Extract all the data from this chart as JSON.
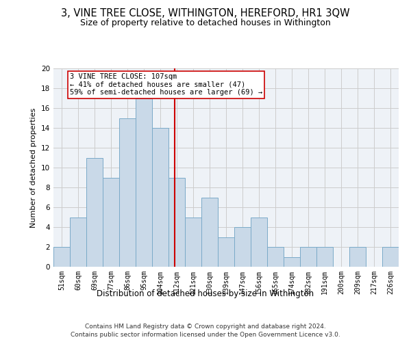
{
  "title": "3, VINE TREE CLOSE, WITHINGTON, HEREFORD, HR1 3QW",
  "subtitle": "Size of property relative to detached houses in Withington",
  "xlabel": "Distribution of detached houses by size in Withington",
  "ylabel": "Number of detached properties",
  "footnote1": "Contains HM Land Registry data © Crown copyright and database right 2024.",
  "footnote2": "Contains public sector information licensed under the Open Government Licence v3.0.",
  "bar_labels": [
    "51sqm",
    "60sqm",
    "69sqm",
    "77sqm",
    "86sqm",
    "95sqm",
    "104sqm",
    "112sqm",
    "121sqm",
    "130sqm",
    "139sqm",
    "147sqm",
    "156sqm",
    "165sqm",
    "174sqm",
    "182sqm",
    "191sqm",
    "200sqm",
    "209sqm",
    "217sqm",
    "226sqm"
  ],
  "bar_values": [
    2,
    5,
    11,
    9,
    15,
    17,
    14,
    9,
    5,
    7,
    3,
    4,
    5,
    2,
    1,
    2,
    2,
    0,
    2,
    0,
    2
  ],
  "bar_color": "#c9d9e8",
  "bar_edge_color": "#7aaac8",
  "vline_color": "#cc0000",
  "annotation_box_text": "3 VINE TREE CLOSE: 107sqm\n← 41% of detached houses are smaller (47)\n59% of semi-detached houses are larger (69) →",
  "annotation_box_edge_color": "#cc0000",
  "ylim": [
    0,
    20
  ],
  "yticks": [
    0,
    2,
    4,
    6,
    8,
    10,
    12,
    14,
    16,
    18,
    20
  ],
  "grid_color": "#cccccc",
  "bg_color": "#eef2f7",
  "title_fontsize": 10.5,
  "subtitle_fontsize": 9,
  "ylabel_fontsize": 8,
  "xlabel_fontsize": 8.5,
  "tick_fontsize": 7,
  "annot_fontsize": 7.5,
  "footnote_fontsize": 6.5
}
